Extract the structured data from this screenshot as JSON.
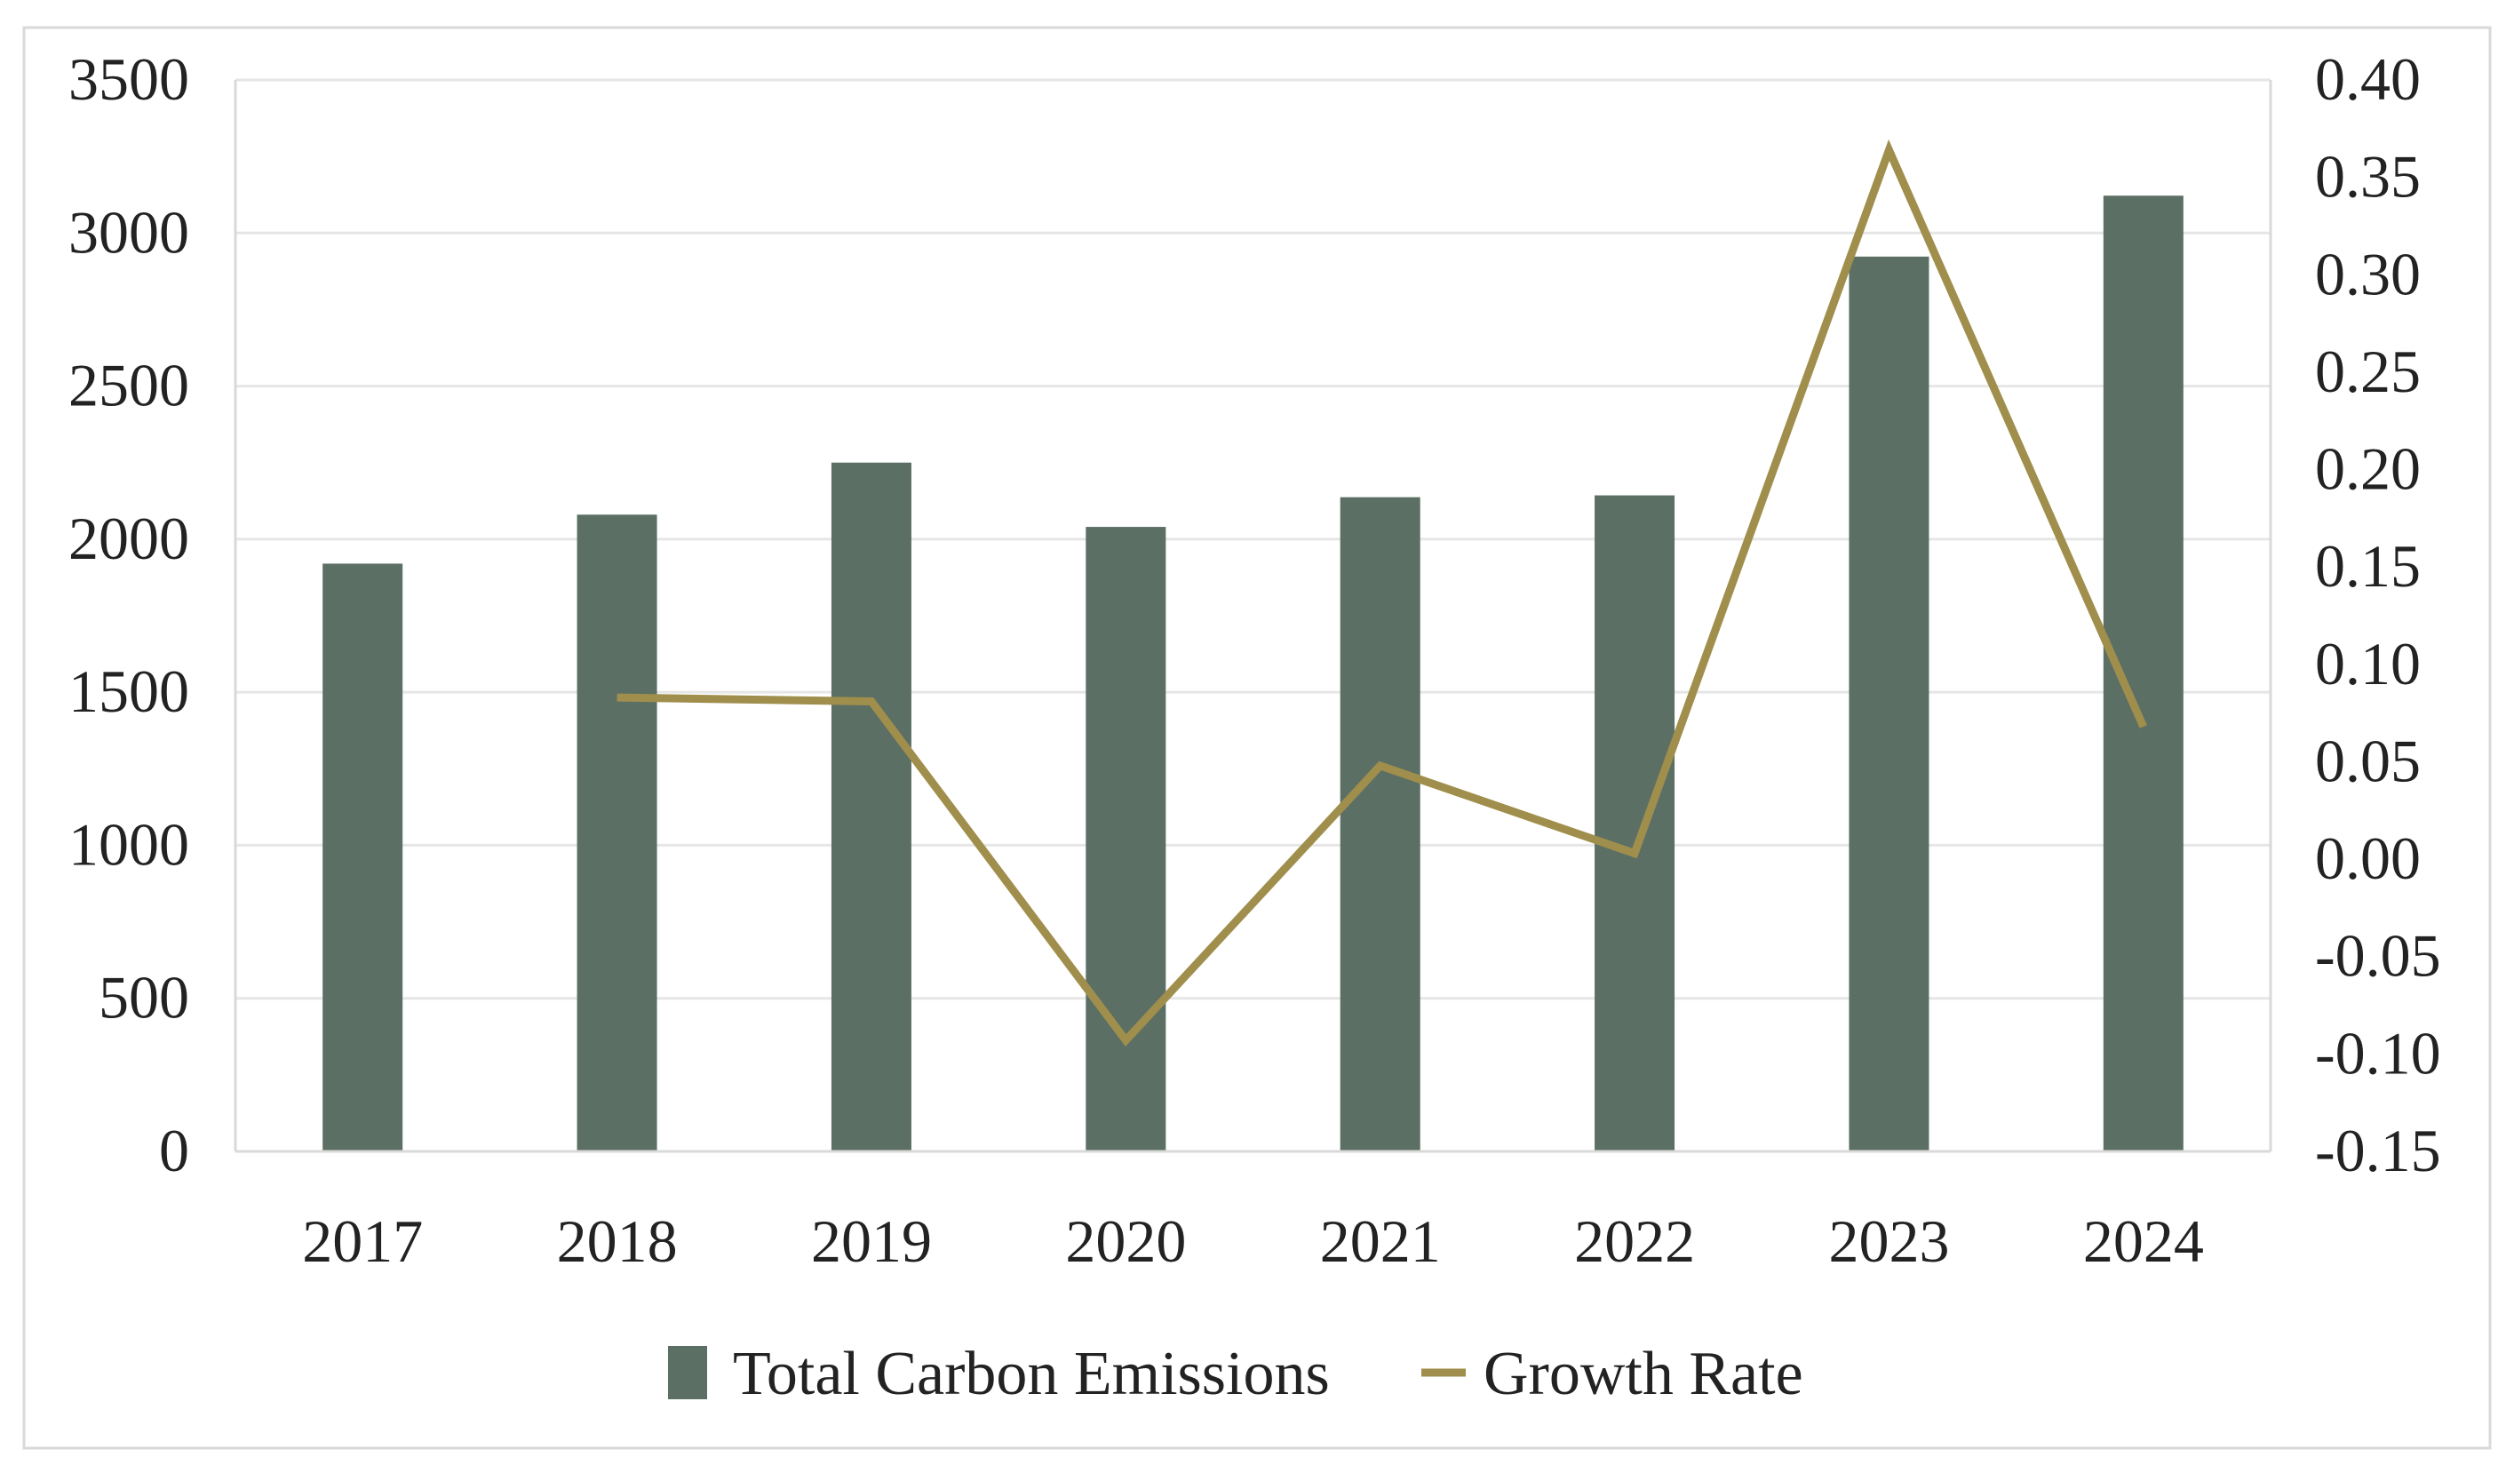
{
  "chart_data": {
    "type": "bar+line",
    "categories": [
      "2017",
      "2018",
      "2019",
      "2020",
      "2021",
      "2022",
      "2023",
      "2024"
    ],
    "series": [
      {
        "name": "Total Carbon Emissions",
        "type": "bar",
        "axis": "left",
        "values": [
          1920,
          2080,
          2250,
          2040,
          2137,
          2143,
          2923,
          3122
        ],
        "color": "#5b6f64"
      },
      {
        "name": "Growth Rate",
        "type": "line",
        "axis": "right",
        "values": [
          null,
          0.083,
          0.081,
          -0.093,
          0.048,
          0.003,
          0.364,
          0.068
        ],
        "color": "#a08e4c"
      }
    ],
    "left_axis": {
      "ylim": [
        0,
        3500
      ],
      "ticks": [
        "0",
        "500",
        "1000",
        "1500",
        "2000",
        "2500",
        "3000",
        "3500"
      ]
    },
    "right_axis": {
      "ylim": [
        -0.15,
        0.4
      ],
      "ticks": [
        "-0.15",
        "-0.10",
        "-0.05",
        "0.00",
        "0.05",
        "0.10",
        "0.15",
        "0.20",
        "0.25",
        "0.30",
        "0.35",
        "0.40"
      ]
    },
    "grid": true,
    "legend": "bottom"
  }
}
